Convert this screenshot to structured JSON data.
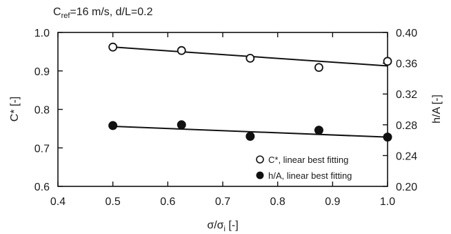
{
  "chart_data": {
    "type": "scatter",
    "annotation": {
      "main": "C",
      "sub": "ref",
      "rest": "=16 m/s,  d/L=0.2"
    },
    "xlabel": {
      "main": "σ/σ",
      "sub": "i",
      "rest": " [-]"
    },
    "ylabel_left": "C* [-]",
    "ylabel_right": "h/A [-]",
    "xlim": [
      0.4,
      1.0
    ],
    "ylim_left": [
      0.6,
      1.0
    ],
    "ylim_right": [
      0.2,
      0.4
    ],
    "x_ticks": [
      "0.4",
      "0.5",
      "0.6",
      "0.7",
      "0.8",
      "0.9",
      "1.0"
    ],
    "y_left_ticks": [
      "0.6",
      "0.7",
      "0.8",
      "0.9",
      "1.0"
    ],
    "y_right_ticks": [
      "0.20",
      "0.24",
      "0.28",
      "0.32",
      "0.36",
      "0.40"
    ],
    "grid": false,
    "legend_position": "bottom-right",
    "series": [
      {
        "name": "C*, linear best fitting",
        "axis": "left",
        "marker": "open-circle",
        "x": [
          0.5,
          0.625,
          0.75,
          0.875,
          1.0
        ],
        "y": [
          0.962,
          0.953,
          0.933,
          0.909,
          0.925
        ],
        "fit": {
          "x": [
            0.5,
            1.0
          ],
          "y": [
            0.962,
            0.913
          ]
        }
      },
      {
        "name": "h/A, linear best fitting",
        "axis": "right",
        "marker": "filled-circle",
        "x": [
          0.5,
          0.625,
          0.75,
          0.875,
          1.0
        ],
        "y": [
          0.279,
          0.28,
          0.265,
          0.273,
          0.264
        ],
        "fit": {
          "x": [
            0.5,
            1.0
          ],
          "y": [
            0.278,
            0.264
          ]
        }
      }
    ]
  }
}
